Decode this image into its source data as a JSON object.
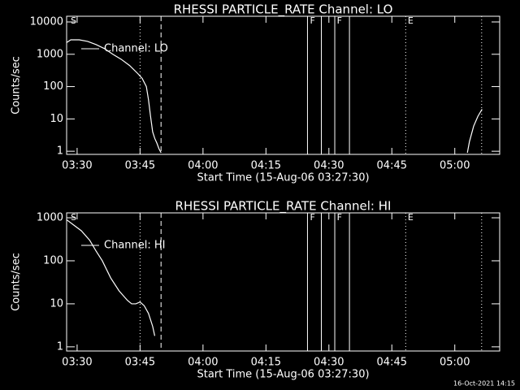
{
  "chart_data": [
    {
      "type": "line",
      "title": "RHESSI PARTICLE_RATE Channel: LO",
      "xlabel": "Start Time (15-Aug-06 03:27:30)",
      "ylabel": "Counts/sec",
      "yscale": "log",
      "xlim": [
        207.5,
        310.7
      ],
      "ylim": [
        0.8,
        15000
      ],
      "xticks": [
        {
          "value": 210,
          "label": "03:30"
        },
        {
          "value": 225,
          "label": "03:45"
        },
        {
          "value": 240,
          "label": "04:00"
        },
        {
          "value": 255,
          "label": "04:15"
        },
        {
          "value": 270,
          "label": "04:30"
        },
        {
          "value": 285,
          "label": "04:45"
        },
        {
          "value": 300,
          "label": "05:00"
        }
      ],
      "yticks": [
        1,
        10,
        100,
        1000,
        10000
      ],
      "x": [
        207.5,
        208.5,
        210.5,
        212.5,
        214.5,
        216.5,
        218.5,
        220.5,
        222.5,
        224.5,
        225.5,
        226.5,
        227.0,
        227.5,
        228.0,
        228.5,
        229.0,
        229.5,
        230.0,
        266,
        303.0,
        303.5,
        304.5,
        305.5,
        306.5
      ],
      "series": [
        {
          "name": "Channel: LO",
          "color": "#ffffff",
          "values": [
            2300,
            2800,
            2800,
            2500,
            2000,
            1500,
            1000,
            700,
            450,
            250,
            180,
            100,
            40,
            12,
            4,
            2.5,
            1.8,
            1.2,
            0.9,
            null,
            0.9,
            2,
            6,
            12,
            20
          ]
        }
      ],
      "markers": [
        {
          "x": 225,
          "style": "dotted"
        },
        {
          "x": 230,
          "style": "dashed"
        },
        {
          "x": 264.9,
          "style": "solid"
        },
        {
          "x": 268.2,
          "style": "solid"
        },
        {
          "x": 271.4,
          "style": "solid"
        },
        {
          "x": 274.9,
          "style": "solid"
        },
        {
          "x": 288.3,
          "style": "dotted"
        },
        {
          "x": 306.4,
          "style": "dotted"
        }
      ],
      "annotations": [
        {
          "x": 208.5,
          "text": "S"
        },
        {
          "x": 265.5,
          "text": "F"
        },
        {
          "x": 271.9,
          "text": "F"
        },
        {
          "x": 288.8,
          "text": "E"
        }
      ]
    },
    {
      "type": "line",
      "title": "RHESSI PARTICLE_RATE Channel: HI",
      "xlabel": "Start Time (15-Aug-06 03:27:30)",
      "ylabel": "Counts/sec",
      "yscale": "log",
      "xlim": [
        207.5,
        310.7
      ],
      "ylim": [
        0.8,
        1300
      ],
      "xticks": [
        {
          "value": 210,
          "label": "03:30"
        },
        {
          "value": 225,
          "label": "03:45"
        },
        {
          "value": 240,
          "label": "04:00"
        },
        {
          "value": 255,
          "label": "04:15"
        },
        {
          "value": 270,
          "label": "04:30"
        },
        {
          "value": 285,
          "label": "04:45"
        },
        {
          "value": 300,
          "label": "05:00"
        }
      ],
      "yticks": [
        1,
        10,
        100,
        1000
      ],
      "x": [
        207.5,
        209,
        211,
        213,
        214.5,
        216,
        218,
        220,
        222,
        223,
        224,
        225,
        226,
        227,
        228,
        228.5
      ],
      "series": [
        {
          "name": "Channel: HI",
          "color": "#ffffff",
          "values": [
            900,
            700,
            500,
            300,
            170,
            100,
            40,
            20,
            12,
            10,
            10,
            11,
            9,
            6,
            3,
            1.8
          ]
        }
      ],
      "markers": [
        {
          "x": 225,
          "style": "dotted"
        },
        {
          "x": 230,
          "style": "dashed"
        },
        {
          "x": 264.9,
          "style": "solid"
        },
        {
          "x": 268.2,
          "style": "solid"
        },
        {
          "x": 271.4,
          "style": "solid"
        },
        {
          "x": 274.9,
          "style": "solid"
        },
        {
          "x": 288.3,
          "style": "dotted"
        },
        {
          "x": 306.4,
          "style": "dotted"
        }
      ],
      "annotations": [
        {
          "x": 208.5,
          "text": "S"
        },
        {
          "x": 265.5,
          "text": "F"
        },
        {
          "x": 271.9,
          "text": "F"
        },
        {
          "x": 288.8,
          "text": "E"
        }
      ]
    }
  ],
  "footer": "16-Oct-2021 14:15"
}
